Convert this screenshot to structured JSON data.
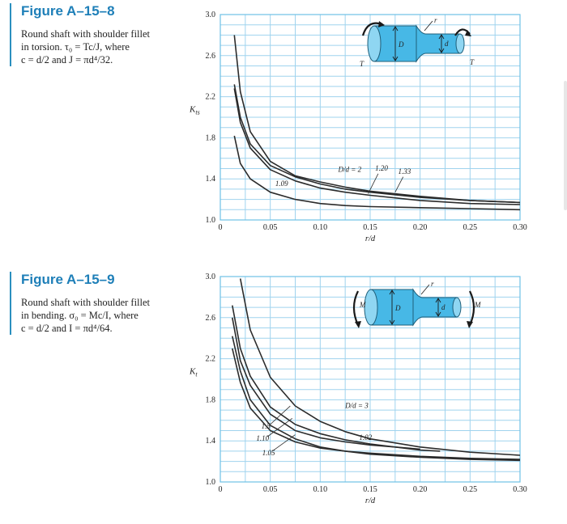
{
  "figures": [
    {
      "title": "Figure A–15–8",
      "lines": [
        "Round shaft with shoulder fillet",
        "in torsion. τ₀ = Tc/J, where",
        "c = d/2 and J = πd⁴/32."
      ],
      "ylabel": "K_ts"
    },
    {
      "title": "Figure A–15–9",
      "lines": [
        "Round shaft with shoulder fillet",
        "in bending. σ₀ = Mc/I, where",
        "c = d/2 and I = πd⁴/64."
      ],
      "ylabel": "K_t"
    }
  ],
  "chart_data": [
    {
      "type": "line",
      "xlabel": "r/d",
      "ylabel": "K_ts",
      "xlim": [
        0,
        0.3
      ],
      "ylim": [
        1.0,
        3.0
      ],
      "x_ticks": [
        "0",
        "0.05",
        "0.10",
        "0.15",
        "0.20",
        "0.25",
        "0.30"
      ],
      "y_ticks": [
        "1.0",
        "1.4",
        "1.8",
        "2.2",
        "2.6",
        "3.0"
      ],
      "grid": true,
      "series": [
        {
          "name": "D/d = 2",
          "x": [
            0.014,
            0.02,
            0.03,
            0.05,
            0.075,
            0.1,
            0.125,
            0.15,
            0.2,
            0.25,
            0.3
          ],
          "y": [
            2.8,
            2.25,
            1.86,
            1.57,
            1.43,
            1.37,
            1.32,
            1.28,
            1.23,
            1.19,
            1.17
          ]
        },
        {
          "name": "1.33",
          "x": [
            0.014,
            0.02,
            0.03,
            0.05,
            0.075,
            0.1,
            0.125,
            0.15,
            0.2,
            0.25,
            0.3
          ],
          "y": [
            2.32,
            2.0,
            1.74,
            1.53,
            1.42,
            1.35,
            1.3,
            1.27,
            1.22,
            1.19,
            1.17
          ]
        },
        {
          "name": "1.20",
          "x": [
            0.014,
            0.02,
            0.03,
            0.05,
            0.075,
            0.1,
            0.125,
            0.15,
            0.2,
            0.25,
            0.3
          ],
          "y": [
            2.28,
            1.95,
            1.7,
            1.49,
            1.38,
            1.31,
            1.27,
            1.24,
            1.19,
            1.16,
            1.15
          ]
        },
        {
          "name": "1.09",
          "x": [
            0.014,
            0.02,
            0.03,
            0.05,
            0.075,
            0.1,
            0.125,
            0.15,
            0.2,
            0.25,
            0.3
          ],
          "y": [
            1.82,
            1.55,
            1.4,
            1.27,
            1.2,
            1.16,
            1.14,
            1.13,
            1.12,
            1.11,
            1.1
          ]
        }
      ],
      "labels": {
        "D/d = 2": {
          "text": "D/d = 2",
          "x": 0.118,
          "y": 1.47
        },
        "1.20": {
          "text": "1.20",
          "x": 0.155,
          "y": 1.48
        },
        "1.33": {
          "text": "1.33",
          "x": 0.178,
          "y": 1.45
        },
        "1.09": {
          "text": "1.09",
          "x": 0.055,
          "y": 1.33
        }
      },
      "diagram": {
        "labels": {
          "r": "r",
          "D": "D",
          "d": "d",
          "T_left": "T",
          "T_right": "T"
        }
      }
    },
    {
      "type": "line",
      "xlabel": "r/d",
      "ylabel": "K_t",
      "xlim": [
        0,
        0.3
      ],
      "ylim": [
        1.0,
        3.0
      ],
      "x_ticks": [
        "0",
        "0.05",
        "0.10",
        "0.15",
        "0.20",
        "0.25",
        "0.30"
      ],
      "y_ticks": [
        "1.0",
        "1.4",
        "1.8",
        "2.2",
        "2.6",
        "3.0"
      ],
      "grid": true,
      "series": [
        {
          "name": "D/d = 3",
          "x": [
            0.02,
            0.03,
            0.05,
            0.075,
            0.1,
            0.125,
            0.15,
            0.2,
            0.25,
            0.3
          ],
          "y": [
            2.98,
            2.48,
            2.02,
            1.74,
            1.59,
            1.49,
            1.42,
            1.34,
            1.29,
            1.26
          ]
        },
        {
          "name": "1.5",
          "x": [
            0.012,
            0.02,
            0.03,
            0.05,
            0.075,
            0.1,
            0.125,
            0.15,
            0.2,
            0.22
          ],
          "y": [
            2.72,
            2.3,
            2.03,
            1.73,
            1.56,
            1.47,
            1.41,
            1.37,
            1.31,
            1.3
          ]
        },
        {
          "name": "1.10",
          "x": [
            0.012,
            0.02,
            0.03,
            0.05,
            0.075,
            0.1,
            0.125,
            0.15,
            0.2
          ],
          "y": [
            2.6,
            2.18,
            1.94,
            1.66,
            1.5,
            1.43,
            1.39,
            1.36,
            1.32
          ]
        },
        {
          "name": "1.05",
          "x": [
            0.012,
            0.02,
            0.03,
            0.05,
            0.075,
            0.1,
            0.125,
            0.15,
            0.2,
            0.25,
            0.3
          ],
          "y": [
            2.42,
            2.08,
            1.8,
            1.55,
            1.42,
            1.34,
            1.3,
            1.27,
            1.24,
            1.22,
            1.21
          ]
        },
        {
          "name": "1.02",
          "x": [
            0.012,
            0.02,
            0.03,
            0.05,
            0.075,
            0.1,
            0.125,
            0.15,
            0.2,
            0.25,
            0.3
          ],
          "y": [
            2.3,
            1.97,
            1.72,
            1.5,
            1.39,
            1.33,
            1.3,
            1.28,
            1.25,
            1.23,
            1.22
          ]
        }
      ],
      "labels": {
        "D/d = 3": {
          "text": "D/d = 3",
          "x": 0.125,
          "y": 1.72
        },
        "1.5": {
          "text": "1.5",
          "x": 0.041,
          "y": 1.52
        },
        "1.10": {
          "text": "1.10",
          "x": 0.036,
          "y": 1.4
        },
        "1.05": {
          "text": "1.05",
          "x": 0.042,
          "y": 1.26
        },
        "1.02": {
          "text": "1.02",
          "x": 0.139,
          "y": 1.41
        }
      },
      "diagram": {
        "labels": {
          "r": "r",
          "D": "D",
          "d": "d",
          "M_left": "M",
          "M_right": "M"
        }
      }
    }
  ]
}
